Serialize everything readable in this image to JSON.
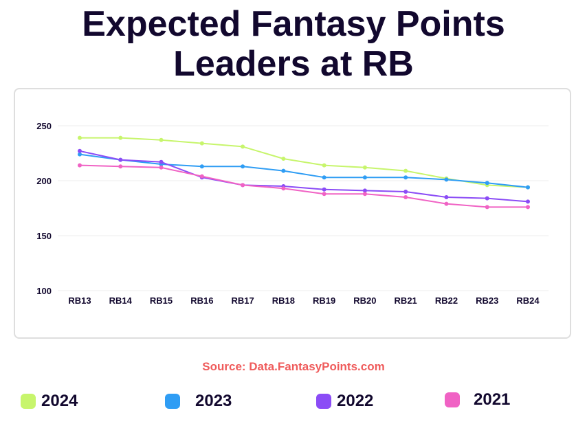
{
  "title_line1": "Expected Fantasy Points",
  "title_line2": "Leaders at RB",
  "source": "Source: Data.FantasyPoints.com",
  "colors": {
    "2024": "#c7f56c",
    "2023": "#2f9df4",
    "2022": "#8b4cf6",
    "2021": "#f062c4",
    "title": "#12082e",
    "source": "#ef5b5b"
  },
  "legend": [
    {
      "label": "2024",
      "color": "#c7f56c"
    },
    {
      "label": "2023",
      "color": "#2f9df4"
    },
    {
      "label": "2022",
      "color": "#8b4cf6"
    },
    {
      "label": "2021",
      "color": "#f062c4"
    }
  ],
  "chart_data": {
    "type": "line",
    "categories": [
      "RB13",
      "RB14",
      "RB15",
      "RB16",
      "RB17",
      "RB18",
      "RB19",
      "RB20",
      "RB21",
      "RB22",
      "RB23",
      "RB24"
    ],
    "ylim": [
      100,
      250
    ],
    "yticks": [
      100,
      150,
      200,
      250
    ],
    "grid": true,
    "series": [
      {
        "name": "2024",
        "color": "#c7f56c",
        "values": [
          239,
          239,
          237,
          234,
          231,
          220,
          214,
          212,
          209,
          202,
          196,
          194
        ]
      },
      {
        "name": "2023",
        "color": "#2f9df4",
        "values": [
          224,
          219,
          215,
          213,
          213,
          209,
          203,
          203,
          203,
          201,
          198,
          194
        ]
      },
      {
        "name": "2022",
        "color": "#8b4cf6",
        "values": [
          227,
          219,
          217,
          203,
          196,
          195,
          192,
          191,
          190,
          185,
          184,
          181
        ]
      },
      {
        "name": "2021",
        "color": "#f062c4",
        "values": [
          214,
          213,
          212,
          204,
          196,
          193,
          188,
          188,
          185,
          179,
          176,
          176
        ]
      }
    ]
  }
}
